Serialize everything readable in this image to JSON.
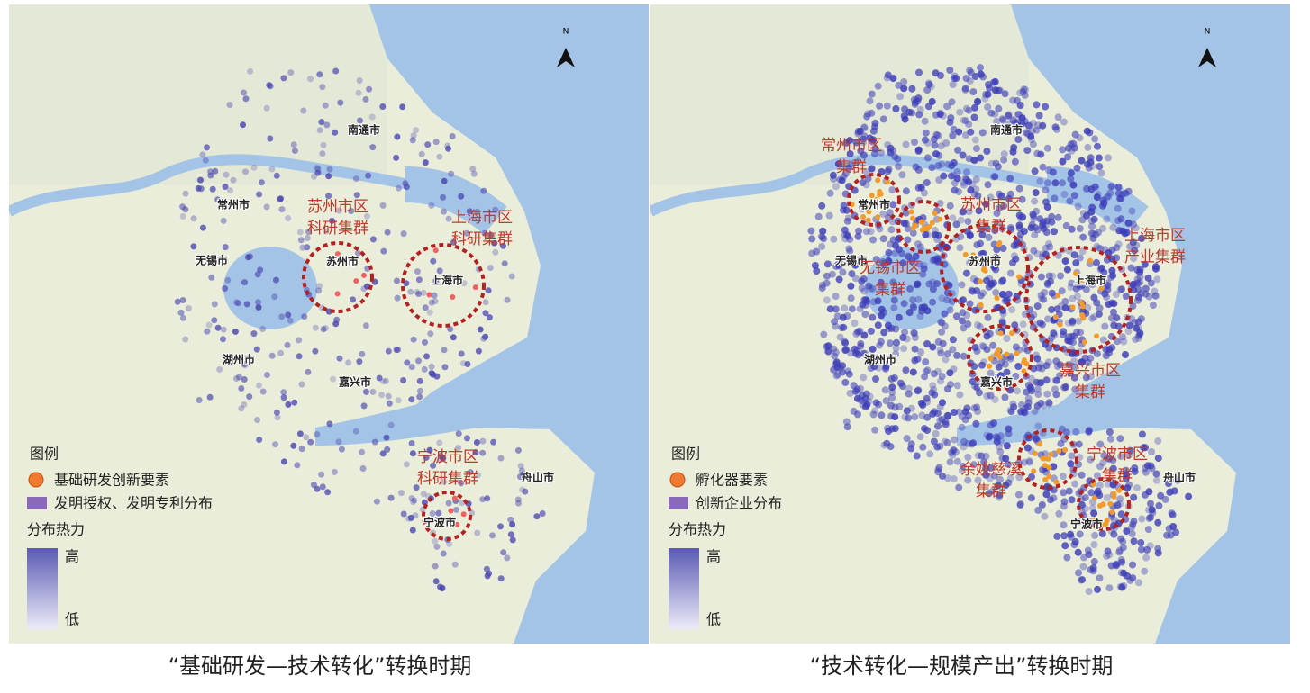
{
  "panels": [
    {
      "north": "N",
      "cities": [
        "南通市",
        "常州市",
        "无锡市",
        "苏州市",
        "上海市",
        "湖州市",
        "嘉兴市",
        "宁波市",
        "舟山市"
      ],
      "clusters": [
        [
          "苏州市区",
          "科研集群"
        ],
        [
          "上海市区",
          "科研集群"
        ],
        [
          "宁波市区",
          "科研集群"
        ]
      ],
      "legend": {
        "title": "图例",
        "items": [
          "基础研发创新要素",
          "发明授权、发明专利分布"
        ],
        "heat_title": "分布热力",
        "high": "高",
        "low": "低"
      },
      "caption": "“基础研发—技术转化”转换时期"
    },
    {
      "north": "N",
      "cities": [
        "南通市",
        "常州市",
        "无锡市",
        "苏州市",
        "上海市",
        "湖州市",
        "嘉兴市",
        "宁波市",
        "舟山市"
      ],
      "clusters": [
        [
          "常州市区",
          "集群"
        ],
        [
          "苏州市区",
          "集群"
        ],
        [
          "上海市区",
          "产业集群"
        ],
        [
          "无锡市区",
          "集群"
        ],
        [
          "嘉兴市区",
          "集群"
        ],
        [
          "余姚慈溪",
          "集群"
        ],
        [
          "宁波市区",
          "集群"
        ]
      ],
      "legend": {
        "title": "图例",
        "items": [
          "孵化器要素",
          "创新企业分布"
        ],
        "heat_title": "分布热力",
        "high": "高",
        "low": "低"
      },
      "caption": "“技术转化—规模产出”转换时期"
    }
  ]
}
